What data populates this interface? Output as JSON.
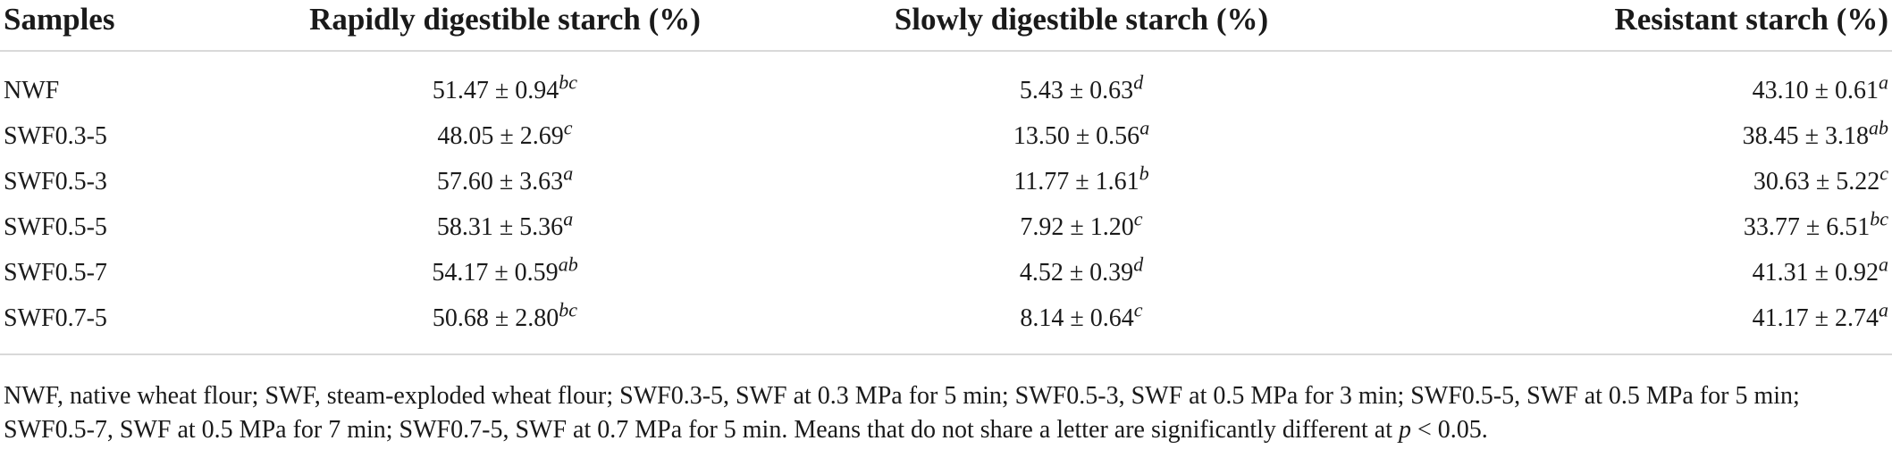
{
  "table": {
    "headers": [
      "Samples",
      "Rapidly digestible starch (%)",
      "Slowly digestible starch (%)",
      "Resistant starch (%)"
    ],
    "rows": [
      {
        "sample": "NWF",
        "rds": {
          "v": "51.47 ± 0.94",
          "sup": "bc"
        },
        "sds": {
          "v": "5.43 ± 0.63",
          "sup": "d"
        },
        "rs": {
          "v": "43.10 ± 0.61",
          "sup": "a"
        }
      },
      {
        "sample": "SWF0.3-5",
        "rds": {
          "v": "48.05 ± 2.69",
          "sup": "c"
        },
        "sds": {
          "v": "13.50 ± 0.56",
          "sup": "a"
        },
        "rs": {
          "v": "38.45 ± 3.18",
          "sup": "ab"
        }
      },
      {
        "sample": "SWF0.5-3",
        "rds": {
          "v": "57.60 ± 3.63",
          "sup": "a"
        },
        "sds": {
          "v": "11.77 ± 1.61",
          "sup": "b"
        },
        "rs": {
          "v": "30.63 ± 5.22",
          "sup": "c"
        }
      },
      {
        "sample": "SWF0.5-5",
        "rds": {
          "v": "58.31 ± 5.36",
          "sup": "a"
        },
        "sds": {
          "v": "7.92 ± 1.20",
          "sup": "c"
        },
        "rs": {
          "v": "33.77 ± 6.51",
          "sup": "bc"
        }
      },
      {
        "sample": "SWF0.5-7",
        "rds": {
          "v": "54.17 ± 0.59",
          "sup": "ab"
        },
        "sds": {
          "v": "4.52 ± 0.39",
          "sup": "d"
        },
        "rs": {
          "v": "41.31 ± 0.92",
          "sup": "a"
        }
      },
      {
        "sample": "SWF0.7-5",
        "rds": {
          "v": "50.68 ± 2.80",
          "sup": "bc"
        },
        "sds": {
          "v": "8.14 ± 0.64",
          "sup": "c"
        },
        "rs": {
          "v": "41.17 ± 2.74",
          "sup": "a"
        }
      }
    ]
  },
  "footnote": {
    "text": "NWF, native wheat flour; SWF, steam-exploded wheat flour; SWF0.3-5, SWF at 0.3 MPa for 5 min; SWF0.5-3, SWF at 0.5 MPa for 3 min; SWF0.5-5, SWF at 0.5 MPa for 5 min; SWF0.5-7, SWF at 0.5 MPa for 7 min; SWF0.7-5, SWF at 0.7 MPa for 5 min. Means that do not share a letter are significantly different at ",
    "p_symbol": "p",
    "p_rest": " < 0.05."
  }
}
